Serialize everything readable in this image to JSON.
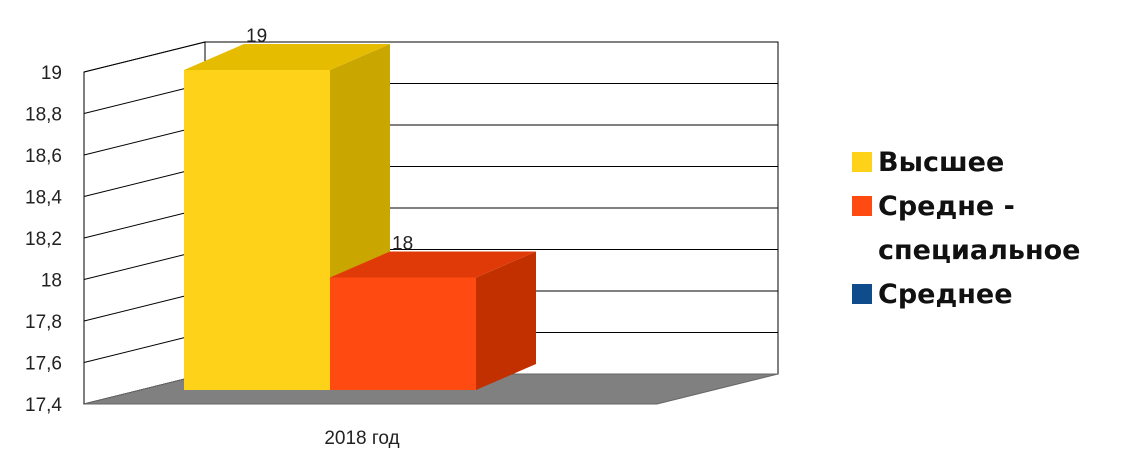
{
  "chart_data": {
    "type": "bar",
    "categories": [
      "2018 год"
    ],
    "series": [
      {
        "name": "Высшее",
        "values": [
          19
        ],
        "color": "#FFD21A",
        "side": "#C9A600",
        "top": "#E6BC00"
      },
      {
        "name": "Средне - специальное",
        "legend_lines": [
          "Средне -",
          "специальное"
        ],
        "values": [
          18
        ],
        "color": "#FF4A12",
        "side": "#C23000",
        "top": "#E03A08"
      },
      {
        "name": "Среднее",
        "values": [
          17.4
        ],
        "color": "#0F4C8C",
        "side": "#0A3766",
        "top": "#0C4278"
      }
    ],
    "yticks": [
      "17,4",
      "17,6",
      "17,8",
      "18",
      "18,2",
      "18,4",
      "18,6",
      "18,8",
      "19"
    ],
    "ylim": [
      17.4,
      19
    ],
    "data_labels": [
      "19",
      "18"
    ],
    "grid": true,
    "legend": "right",
    "floor_color": "#808080"
  }
}
